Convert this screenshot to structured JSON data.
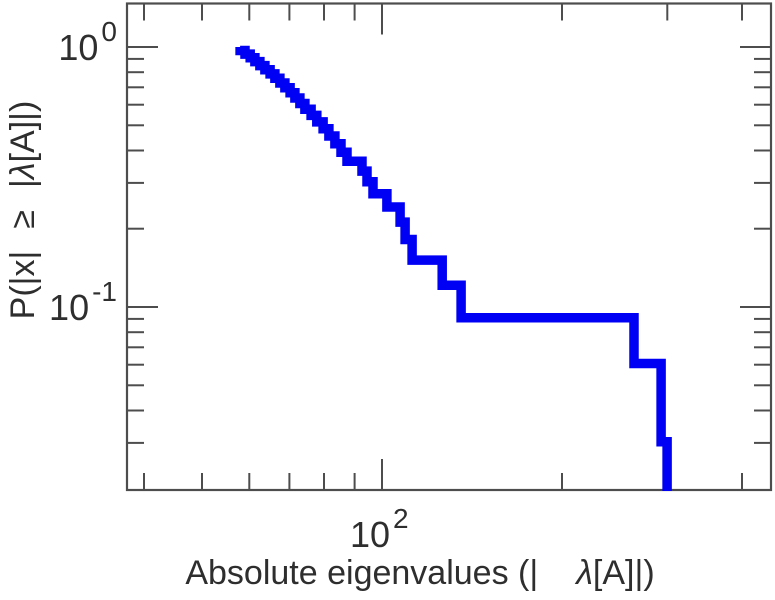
{
  "figure": {
    "background": "#ffffff",
    "axis_color": "#4d4d4d",
    "text_color": "#2e2e2e"
  },
  "chart_data": {
    "type": "line",
    "subtype": "ccdf-log-log-step",
    "title": "",
    "x_scale": "log",
    "y_scale": "log",
    "xlim": [
      37.5,
      449
    ],
    "ylim": [
      0.02,
      1.48
    ],
    "grid": false,
    "legend": "none",
    "x_axis": {
      "title_parts": [
        {
          "text": "Absolute eigenvalues (|"
        },
        {
          "text": "λ",
          "italic": true,
          "dx": 38
        },
        {
          "text": "[A]|)"
        }
      ],
      "major_ticks": [
        {
          "value": 100,
          "label_base": "10",
          "label_exp": "2"
        }
      ],
      "minor_ticks": [
        40,
        50,
        60,
        70,
        80,
        90,
        200,
        300,
        400
      ]
    },
    "y_axis": {
      "title_parts": [
        {
          "text": "P(|x|"
        },
        {
          "text": "≥",
          "dx": 22
        },
        {
          "text": "|",
          "dx": 22
        },
        {
          "text": "λ",
          "italic": true
        },
        {
          "text": "[A]|)"
        }
      ],
      "major_ticks": [
        {
          "value": 1,
          "label_base": "10",
          "label_exp": "0"
        },
        {
          "value": 0.1,
          "label_base": "10",
          "label_exp": "-1"
        }
      ],
      "minor_ticks": [
        0.9,
        0.8,
        0.7,
        0.6,
        0.5,
        0.4,
        0.3,
        0.2,
        0.09,
        0.08,
        0.07,
        0.06,
        0.05,
        0.04,
        0.03
      ]
    },
    "series": [
      {
        "name": "eigenvalue-ccdf",
        "color": "#0000f5",
        "line_width": 9.5,
        "n_samples": 33,
        "p_start": 1.0,
        "p_step": "1/33",
        "eigenvalue_moduli": [
          57.9,
          59.0,
          60.2,
          61.3,
          62.5,
          63.7,
          65.0,
          66.2,
          67.5,
          68.8,
          70.2,
          71.5,
          72.9,
          74.3,
          76.1,
          77.8,
          79.7,
          81.5,
          83.4,
          85.4,
          87.4,
          92.6,
          94.4,
          96.6,
          101.9,
          107.2,
          109.3,
          112.3,
          126.1,
          135.6,
          263.9,
          292.9,
          299.7
        ]
      }
    ]
  }
}
